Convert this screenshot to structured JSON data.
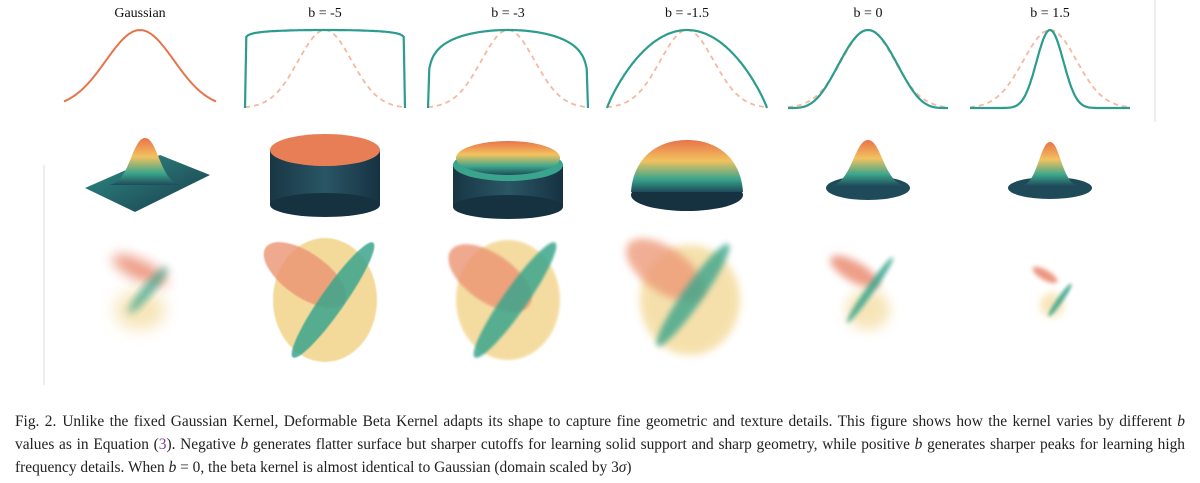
{
  "figure": {
    "columns": [
      {
        "title": "Gaussian"
      },
      {
        "title": "b = -5"
      },
      {
        "title": "b = -3"
      },
      {
        "title": "b = -1.5"
      },
      {
        "title": "b = 0"
      },
      {
        "title": "b = 1.5"
      }
    ]
  },
  "caption": {
    "runs": [
      "Fig. 2.",
      "Unlike the fixed Gaussian Kernel, Deformable Beta Kernel adapts its shape to capture fine geometric and texture details. This figure shows how the kernel varies by different ",
      "b",
      " values as in Equation (",
      "3",
      "). Negative ",
      "b",
      " generates flatter surface but sharper cutoffs for learning solid support and sharp geometry, while positive ",
      "b",
      " generates sharper peaks for learning high frequency details. When ",
      "b",
      " = 0, the beta kernel is almost identical to Gaussian (domain scaled by 3",
      "σ",
      ")"
    ]
  }
}
